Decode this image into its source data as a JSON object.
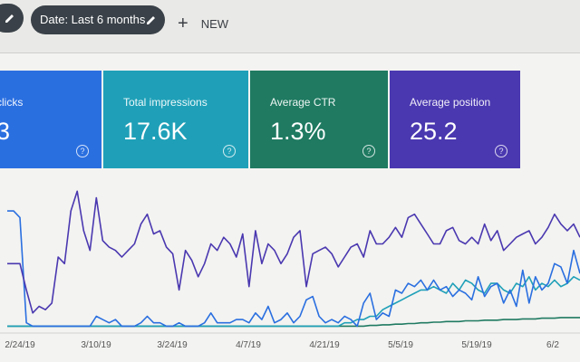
{
  "toolbar": {
    "date_filter_label": "Date: Last 6 months",
    "new_label": "NEW",
    "new_icon": "plus-icon",
    "edit_icon": "pencil-icon"
  },
  "metrics": [
    {
      "title": "clicks",
      "value": "3",
      "color": "#2a6fe0"
    },
    {
      "title": "Total impressions",
      "value": "17.6K",
      "color": "#1fa0b8"
    },
    {
      "title": "Average CTR",
      "value": "1.3%",
      "color": "#1f7a61"
    },
    {
      "title": "Average position",
      "value": "25.2",
      "color": "#4a38b0"
    }
  ],
  "chart_data": {
    "type": "line",
    "x_ticks": [
      "2/24/19",
      "3/10/19",
      "3/24/19",
      "4/7/19",
      "4/21/19",
      "5/5/19",
      "5/19/19",
      "6/2"
    ],
    "series": [
      {
        "color": "#4a38b0",
        "values": [
          100,
          100,
          100,
          60,
          25,
          35,
          30,
          40,
          110,
          100,
          180,
          210,
          150,
          120,
          200,
          135,
          125,
          120,
          110,
          120,
          130,
          160,
          175,
          145,
          150,
          125,
          115,
          60,
          120,
          105,
          80,
          100,
          130,
          120,
          140,
          130,
          110,
          145,
          65,
          150,
          100,
          130,
          120,
          100,
          115,
          140,
          150,
          65,
          115,
          120,
          125,
          115,
          95,
          110,
          125,
          130,
          110,
          150,
          130,
          130,
          140,
          155,
          140,
          170,
          175,
          160,
          145,
          130,
          130,
          150,
          155,
          135,
          130,
          140,
          130,
          160,
          135,
          150,
          120,
          130,
          140,
          145,
          150,
          130,
          140,
          155,
          175,
          160,
          150,
          160,
          140
        ]
      },
      {
        "color": "#2a6fe0",
        "values": [
          180,
          180,
          170,
          10,
          5,
          5,
          5,
          5,
          5,
          5,
          5,
          5,
          5,
          5,
          20,
          15,
          10,
          15,
          5,
          5,
          5,
          10,
          20,
          10,
          10,
          5,
          5,
          10,
          5,
          5,
          5,
          10,
          25,
          10,
          10,
          10,
          15,
          15,
          10,
          25,
          15,
          35,
          10,
          15,
          25,
          10,
          20,
          45,
          50,
          20,
          10,
          15,
          10,
          20,
          15,
          5,
          40,
          55,
          15,
          25,
          20,
          60,
          55,
          70,
          65,
          75,
          60,
          75,
          60,
          65,
          50,
          60,
          55,
          45,
          80,
          50,
          65,
          70,
          40,
          60,
          35,
          90,
          40,
          80,
          60,
          70,
          100,
          95,
          70,
          120,
          85
        ]
      },
      {
        "color": "#1fa0b8",
        "values": [
          5,
          5,
          5,
          5,
          5,
          5,
          5,
          5,
          5,
          5,
          5,
          5,
          5,
          5,
          5,
          5,
          5,
          5,
          5,
          5,
          5,
          5,
          5,
          5,
          5,
          5,
          5,
          5,
          5,
          5,
          5,
          5,
          5,
          5,
          5,
          5,
          5,
          5,
          5,
          5,
          5,
          5,
          5,
          5,
          5,
          5,
          5,
          5,
          5,
          5,
          5,
          5,
          5,
          10,
          10,
          15,
          15,
          20,
          20,
          30,
          35,
          40,
          45,
          50,
          55,
          60,
          60,
          65,
          60,
          55,
          70,
          60,
          75,
          70,
          60,
          55,
          70,
          70,
          60,
          55,
          70,
          65,
          80,
          60,
          70,
          65,
          75,
          65,
          70,
          80,
          75
        ]
      },
      {
        "color": "#1f7a61",
        "values": [
          5,
          5,
          5,
          5,
          5,
          5,
          5,
          5,
          5,
          5,
          5,
          5,
          5,
          5,
          5,
          5,
          5,
          5,
          5,
          5,
          5,
          5,
          5,
          5,
          5,
          5,
          5,
          5,
          5,
          5,
          5,
          5,
          5,
          5,
          5,
          5,
          5,
          5,
          5,
          5,
          5,
          5,
          5,
          5,
          5,
          5,
          5,
          5,
          5,
          5,
          5,
          5,
          5,
          5,
          5,
          5,
          5,
          6,
          6,
          7,
          7,
          8,
          8,
          9,
          9,
          10,
          10,
          11,
          11,
          12,
          12,
          12,
          13,
          13,
          13,
          14,
          14,
          14,
          15,
          15,
          15,
          16,
          16,
          16,
          17,
          17,
          17,
          18,
          18,
          18,
          18
        ]
      }
    ],
    "ylim": [
      0,
      220
    ],
    "grid": false
  }
}
